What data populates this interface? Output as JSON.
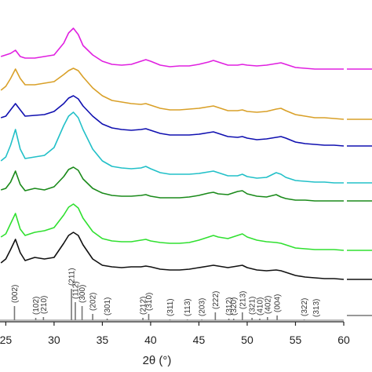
{
  "chart_data": {
    "type": "line",
    "xlabel": "2θ (°)",
    "xlim": [
      24.4,
      60
    ],
    "xticks": [
      25,
      30,
      35,
      40,
      45,
      50,
      55,
      60
    ],
    "ylim": [
      0,
      410
    ],
    "x": [
      24.5,
      25,
      25.5,
      26,
      26.5,
      27,
      28,
      29,
      30,
      31,
      31.5,
      32,
      32.5,
      33,
      34,
      35,
      36,
      37,
      38,
      39,
      39.5,
      40,
      41,
      42,
      43,
      44,
      45,
      46,
      46.5,
      47,
      48,
      49,
      49.5,
      50,
      51,
      52,
      53,
      53.5,
      54,
      55,
      56,
      57,
      58,
      59,
      60
    ],
    "series": [
      {
        "color": "#e020e0",
        "values": [
          338,
          340,
          342,
          346,
          338,
          336,
          336,
          338,
          340,
          355,
          368,
          374,
          366,
          352,
          340,
          332,
          328,
          327,
          328,
          332,
          334,
          332,
          327,
          325,
          326,
          326,
          328,
          331,
          333,
          331,
          327,
          327,
          328,
          327,
          326,
          327,
          329,
          330,
          328,
          324,
          323,
          322,
          322,
          322,
          322
        ]
      },
      {
        "color": "#d9a028",
        "values": [
          295,
          300,
          310,
          322,
          310,
          302,
          302,
          304,
          306,
          315,
          320,
          323,
          320,
          312,
          298,
          288,
          282,
          280,
          278,
          277,
          278,
          276,
          272,
          270,
          270,
          271,
          272,
          274,
          275,
          273,
          269,
          269,
          270,
          268,
          267,
          268,
          271,
          272,
          269,
          264,
          262,
          260,
          260,
          259,
          258
        ]
      },
      {
        "color": "#1010b0",
        "values": [
          260,
          262,
          270,
          278,
          270,
          262,
          263,
          264,
          268,
          278,
          285,
          288,
          284,
          275,
          262,
          252,
          247,
          245,
          244,
          245,
          246,
          244,
          240,
          238,
          238,
          238,
          239,
          241,
          242,
          240,
          236,
          235,
          236,
          234,
          232,
          233,
          235,
          236,
          234,
          229,
          227,
          226,
          225,
          225,
          224
        ]
      },
      {
        "color": "#22c0c8",
        "values": [
          205,
          210,
          225,
          245,
          220,
          208,
          210,
          212,
          222,
          250,
          262,
          267,
          260,
          245,
          220,
          205,
          198,
          196,
          195,
          196,
          198,
          195,
          190,
          188,
          188,
          188,
          189,
          191,
          192,
          190,
          186,
          186,
          188,
          185,
          183,
          184,
          190,
          188,
          184,
          180,
          179,
          178,
          178,
          177,
          177
        ]
      },
      {
        "color": "#1a8a1a",
        "values": [
          168,
          170,
          178,
          192,
          175,
          167,
          170,
          168,
          172,
          185,
          194,
          197,
          193,
          182,
          170,
          164,
          161,
          160,
          160,
          161,
          162,
          160,
          158,
          158,
          158,
          159,
          161,
          164,
          165,
          163,
          162,
          166,
          167,
          163,
          160,
          159,
          162,
          159,
          157,
          155,
          155,
          154,
          154,
          154,
          154
        ]
      },
      {
        "color": "#30e030",
        "values": [
          108,
          112,
          125,
          138,
          118,
          110,
          114,
          116,
          120,
          136,
          146,
          150,
          145,
          132,
          115,
          106,
          103,
          102,
          102,
          104,
          105,
          103,
          101,
          100,
          100,
          101,
          104,
          108,
          110,
          108,
          106,
          110,
          112,
          108,
          104,
          102,
          101,
          100,
          98,
          94,
          93,
          92,
          92,
          92,
          91
        ]
      },
      {
        "color": "#111111",
        "values": [
          75,
          80,
          92,
          105,
          88,
          78,
          82,
          80,
          82,
          100,
          110,
          114,
          110,
          98,
          80,
          72,
          70,
          69,
          70,
          70,
          71,
          70,
          67,
          66,
          66,
          67,
          69,
          71,
          72,
          71,
          69,
          71,
          72,
          69,
          66,
          65,
          66,
          65,
          63,
          59,
          57,
          56,
          55,
          55,
          54
        ]
      }
    ],
    "reference": {
      "color": "#777777",
      "x": [
        25.9,
        28.1,
        28.9,
        31.8,
        32.2,
        32.9,
        34.0,
        35.5,
        39.2,
        39.8,
        42.0,
        43.8,
        45.3,
        46.7,
        48.1,
        48.6,
        49.5,
        50.5,
        51.3,
        52.1,
        53.1,
        55.9,
        57.1
      ],
      "values": [
        20,
        5,
        6,
        42,
        25,
        20,
        10,
        4,
        5,
        10,
        3,
        3,
        3,
        12,
        4,
        4,
        12,
        5,
        4,
        6,
        8,
        3,
        2
      ],
      "labels": [
        "(002)",
        "(102)",
        "(210)",
        "(211)",
        "(112)",
        "(300)",
        "(202)",
        "(301)",
        "(212)",
        "(310)",
        "(311)",
        "(113)",
        "(203)",
        "(222)",
        "(312)",
        "(320)",
        "(213)",
        "(321)",
        "(410)",
        "(402)",
        "(004)",
        "(322)",
        "(313)"
      ]
    }
  }
}
